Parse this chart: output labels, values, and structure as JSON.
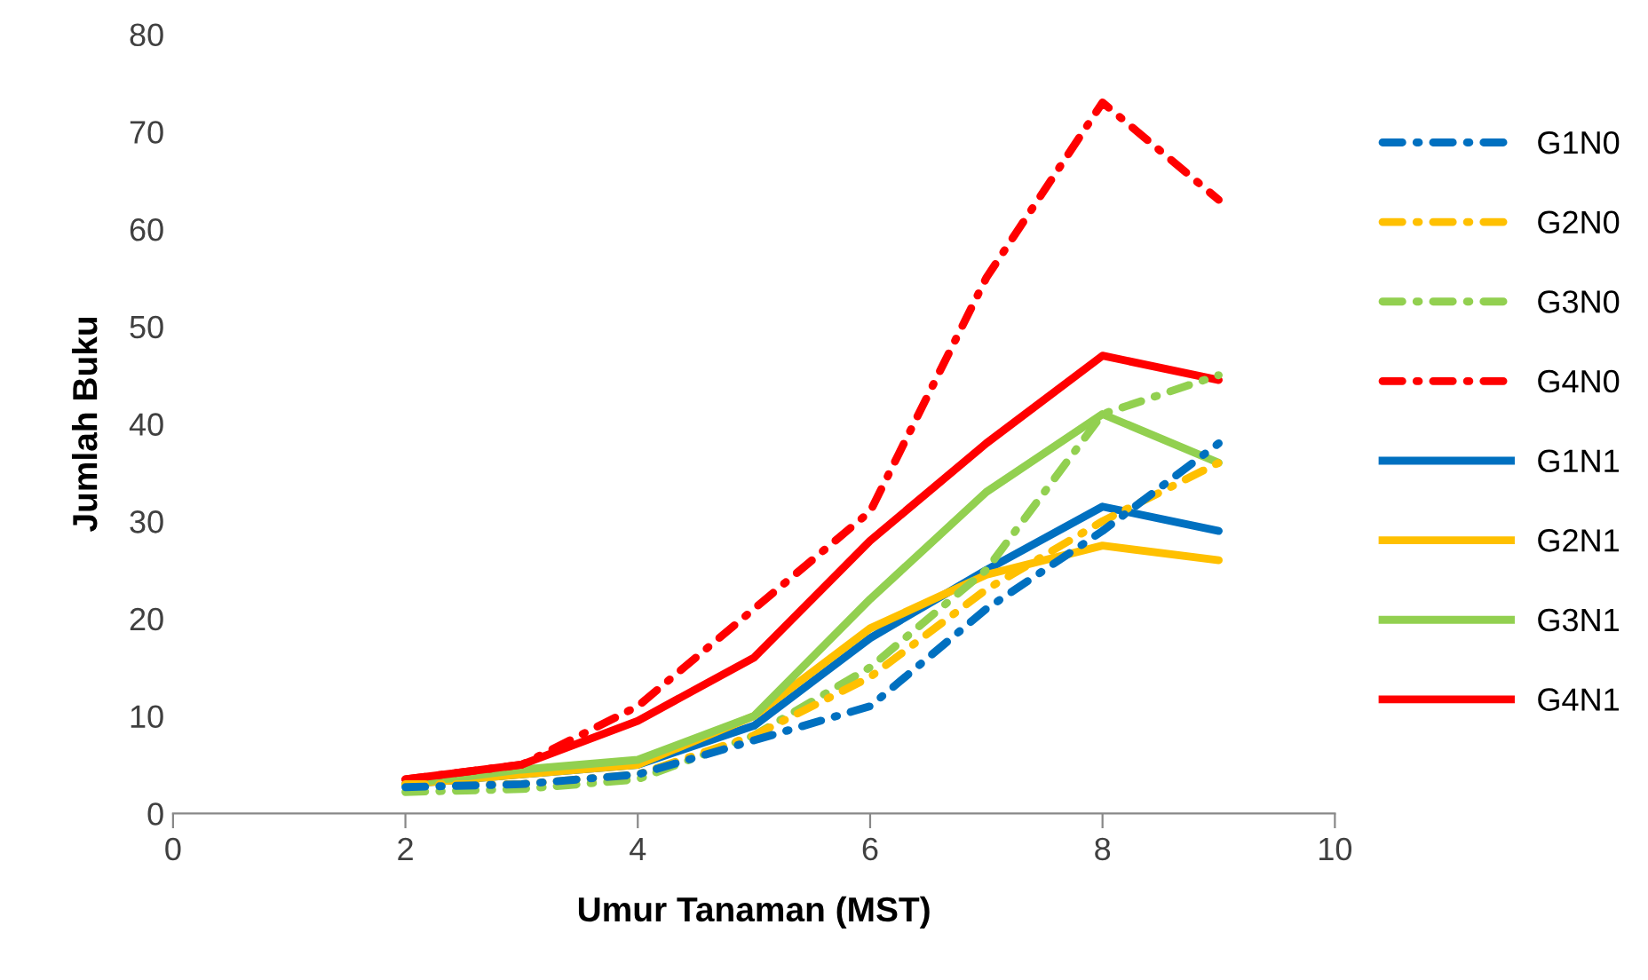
{
  "chart_data": {
    "type": "line",
    "xlabel": "Umur Tanaman (MST)",
    "ylabel": "Jumlah Buku",
    "x": [
      2,
      3,
      4,
      5,
      6,
      7,
      8,
      9
    ],
    "series": [
      {
        "name": "G1N0",
        "color": "#0070c0",
        "line_style": "dashdot",
        "values": [
          2.7,
          3,
          4,
          7.5,
          11,
          21,
          29,
          38
        ]
      },
      {
        "name": "G2N0",
        "color": "#ffc000",
        "line_style": "dashdot",
        "values": [
          3,
          3,
          4,
          8,
          14,
          23,
          30,
          36
        ]
      },
      {
        "name": "G3N0",
        "color": "#92d050",
        "line_style": "dashdot",
        "values": [
          2.2,
          2.5,
          3.5,
          8,
          15,
          25,
          41,
          45
        ]
      },
      {
        "name": "G4N0",
        "color": "#ff0000",
        "line_style": "dashdot",
        "values": [
          3.5,
          5,
          11,
          21,
          31,
          55,
          73,
          63
        ]
      },
      {
        "name": "G1N1",
        "color": "#0070c0",
        "line_style": "solid",
        "values": [
          3,
          4,
          5,
          9,
          18,
          25,
          31.5,
          29
        ]
      },
      {
        "name": "G2N1",
        "color": "#ffc000",
        "line_style": "solid",
        "values": [
          3,
          4,
          5,
          10,
          19,
          24.5,
          27.5,
          26
        ]
      },
      {
        "name": "G3N1",
        "color": "#92d050",
        "line_style": "solid",
        "values": [
          3,
          4.5,
          5.5,
          10,
          22,
          33,
          41,
          36
        ]
      },
      {
        "name": "G4N1",
        "color": "#ff0000",
        "line_style": "solid",
        "values": [
          3.5,
          5,
          9.5,
          16,
          28,
          38,
          47,
          44.5
        ]
      }
    ],
    "xlim": [
      0,
      10
    ],
    "xticks": [
      0,
      2,
      4,
      6,
      8,
      10
    ],
    "ylim": [
      0,
      80
    ],
    "yticks": [
      0,
      10,
      20,
      30,
      40,
      50,
      60,
      70,
      80
    ],
    "grid": false,
    "legend": "right",
    "marker": "none"
  }
}
